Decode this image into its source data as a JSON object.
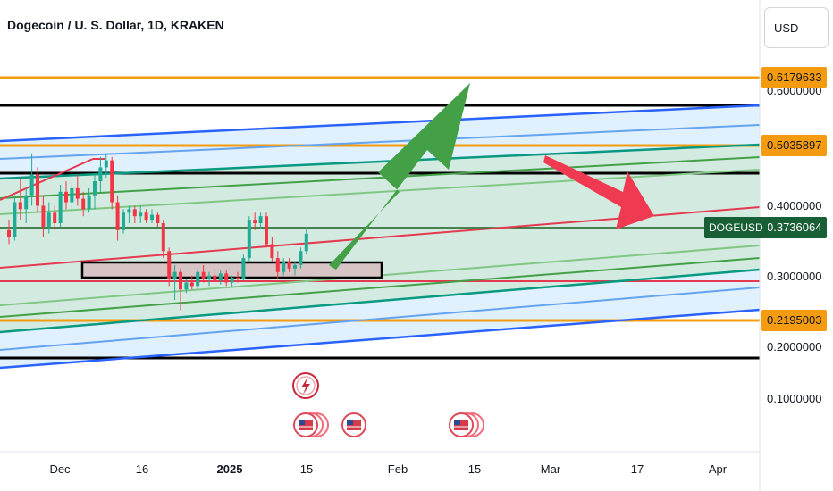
{
  "header": {
    "title": "Dogecoin / U. S. Dollar, 1D, KRAKEN",
    "currency": "USD"
  },
  "colors": {
    "up": "#22ab94",
    "down": "#f23645",
    "orange": "#f59b0f",
    "blue": "#2962ff",
    "green_arrow": "#43a047",
    "red_arrow": "#ef3a52",
    "symbol_tag": "#185f35"
  },
  "chart_data": {
    "type": "candlestick",
    "symbol": "DOGEUSD",
    "last_price": 0.3736064,
    "y_axis_labels": [
      "0.6000000",
      "0.4000000",
      "0.3000000",
      "0.2000000",
      "0.1000000"
    ],
    "x_axis_labels": [
      "Dec",
      "16",
      "2025",
      "15",
      "Feb",
      "15",
      "Mar",
      "17",
      "Apr"
    ],
    "price_levels": [
      {
        "label": "0.6179633",
        "value": 0.6179633,
        "color": "orange"
      },
      {
        "label": "0.5035897",
        "value": 0.5035897,
        "color": "orange"
      },
      {
        "label": "0.2195003",
        "value": 0.2195003,
        "color": "orange"
      }
    ],
    "candles_ohlc": [
      [
        0.37,
        0.385,
        0.35,
        0.36
      ],
      [
        0.36,
        0.42,
        0.355,
        0.41
      ],
      [
        0.41,
        0.445,
        0.385,
        0.4
      ],
      [
        0.4,
        0.43,
        0.38,
        0.42
      ],
      [
        0.42,
        0.48,
        0.405,
        0.45
      ],
      [
        0.45,
        0.46,
        0.395,
        0.405
      ],
      [
        0.405,
        0.42,
        0.36,
        0.375
      ],
      [
        0.375,
        0.41,
        0.365,
        0.395
      ],
      [
        0.395,
        0.405,
        0.37,
        0.38
      ],
      [
        0.38,
        0.435,
        0.375,
        0.425
      ],
      [
        0.425,
        0.44,
        0.4,
        0.41
      ],
      [
        0.41,
        0.44,
        0.395,
        0.43
      ],
      [
        0.43,
        0.45,
        0.405,
        0.415
      ],
      [
        0.415,
        0.425,
        0.39,
        0.4
      ],
      [
        0.4,
        0.43,
        0.395,
        0.42
      ],
      [
        0.42,
        0.45,
        0.4,
        0.44
      ],
      [
        0.44,
        0.475,
        0.425,
        0.46
      ],
      [
        0.46,
        0.48,
        0.445,
        0.47
      ],
      [
        0.47,
        0.475,
        0.4,
        0.41
      ],
      [
        0.41,
        0.42,
        0.355,
        0.37
      ],
      [
        0.37,
        0.4,
        0.365,
        0.395
      ],
      [
        0.395,
        0.405,
        0.38,
        0.4
      ],
      [
        0.4,
        0.405,
        0.38,
        0.39
      ],
      [
        0.39,
        0.405,
        0.38,
        0.395
      ],
      [
        0.395,
        0.4,
        0.38,
        0.385
      ],
      [
        0.385,
        0.4,
        0.38,
        0.392
      ],
      [
        0.392,
        0.395,
        0.375,
        0.38
      ],
      [
        0.38,
        0.385,
        0.33,
        0.34
      ],
      [
        0.34,
        0.345,
        0.29,
        0.3
      ],
      [
        0.3,
        0.32,
        0.27,
        0.31
      ],
      [
        0.31,
        0.315,
        0.255,
        0.285
      ],
      [
        0.285,
        0.3,
        0.28,
        0.295
      ],
      [
        0.295,
        0.305,
        0.285,
        0.29
      ],
      [
        0.29,
        0.315,
        0.285,
        0.31
      ],
      [
        0.31,
        0.32,
        0.295,
        0.3
      ],
      [
        0.3,
        0.31,
        0.29,
        0.305
      ],
      [
        0.305,
        0.315,
        0.295,
        0.298
      ],
      [
        0.298,
        0.312,
        0.292,
        0.308
      ],
      [
        0.308,
        0.312,
        0.29,
        0.295
      ],
      [
        0.295,
        0.305,
        0.29,
        0.302
      ],
      [
        0.302,
        0.31,
        0.295,
        0.3
      ],
      [
        0.3,
        0.335,
        0.298,
        0.33
      ],
      [
        0.33,
        0.39,
        0.325,
        0.385
      ],
      [
        0.385,
        0.395,
        0.37,
        0.38
      ],
      [
        0.38,
        0.395,
        0.372,
        0.39
      ],
      [
        0.39,
        0.395,
        0.345,
        0.35
      ],
      [
        0.35,
        0.36,
        0.325,
        0.33
      ],
      [
        0.33,
        0.34,
        0.3,
        0.31
      ],
      [
        0.31,
        0.33,
        0.305,
        0.325
      ],
      [
        0.325,
        0.33,
        0.31,
        0.315
      ],
      [
        0.315,
        0.325,
        0.305,
        0.32
      ],
      [
        0.32,
        0.345,
        0.315,
        0.34
      ],
      [
        0.34,
        0.375,
        0.335,
        0.365
      ]
    ]
  }
}
